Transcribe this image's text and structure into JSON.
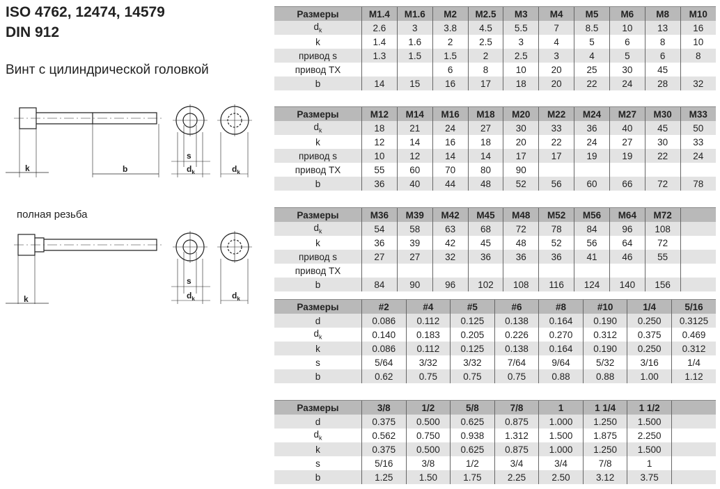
{
  "header": {
    "line1": "ISO 4762, 12474, 14579",
    "line2": "DIN 912",
    "subtitle": "Винт с цилиндрической головкой",
    "full_thread": "полная резьба"
  },
  "diagram_labels": {
    "k": "k",
    "b": "b",
    "s": "s",
    "d": "d",
    "k_sub": "k"
  },
  "tables": [
    {
      "cols": [
        "Размеры",
        "M1.4",
        "M1.6",
        "M2",
        "M2.5",
        "M3",
        "M4",
        "M5",
        "M6",
        "M8",
        "M10"
      ],
      "rows": [
        {
          "label": "d",
          "sub": "k",
          "values": [
            "2.6",
            "3",
            "3.8",
            "4.5",
            "5.5",
            "7",
            "8.5",
            "10",
            "13",
            "16"
          ]
        },
        {
          "label": "k",
          "values": [
            "1.4",
            "1.6",
            "2",
            "2.5",
            "3",
            "4",
            "5",
            "6",
            "8",
            "10"
          ]
        },
        {
          "label": "привод s",
          "values": [
            "1.3",
            "1.5",
            "1.5",
            "2",
            "2.5",
            "3",
            "4",
            "5",
            "6",
            "8"
          ]
        },
        {
          "label": "привод TX",
          "values": [
            "",
            "",
            "6",
            "8",
            "10",
            "20",
            "25",
            "30",
            "45",
            ""
          ]
        },
        {
          "label": "b",
          "values": [
            "14",
            "15",
            "16",
            "17",
            "18",
            "20",
            "22",
            "24",
            "28",
            "32"
          ]
        }
      ]
    },
    {
      "cols": [
        "Размеры",
        "M12",
        "M14",
        "M16",
        "M18",
        "M20",
        "M22",
        "M24",
        "M27",
        "M30",
        "M33"
      ],
      "rows": [
        {
          "label": "d",
          "sub": "k",
          "values": [
            "18",
            "21",
            "24",
            "27",
            "30",
            "33",
            "36",
            "40",
            "45",
            "50"
          ]
        },
        {
          "label": "k",
          "values": [
            "12",
            "14",
            "16",
            "18",
            "20",
            "22",
            "24",
            "27",
            "30",
            "33"
          ]
        },
        {
          "label": "привод s",
          "values": [
            "10",
            "12",
            "14",
            "14",
            "17",
            "17",
            "19",
            "19",
            "22",
            "24"
          ]
        },
        {
          "label": "привод TX",
          "values": [
            "55",
            "60",
            "70",
            "80",
            "90",
            "",
            "",
            "",
            "",
            ""
          ]
        },
        {
          "label": "b",
          "values": [
            "36",
            "40",
            "44",
            "48",
            "52",
            "56",
            "60",
            "66",
            "72",
            "78"
          ]
        }
      ]
    },
    {
      "cols": [
        "Размеры",
        "M36",
        "M39",
        "M42",
        "M45",
        "M48",
        "M52",
        "M56",
        "M64",
        "M72",
        ""
      ],
      "rows": [
        {
          "label": "d",
          "sub": "k",
          "values": [
            "54",
            "58",
            "63",
            "68",
            "72",
            "78",
            "84",
            "96",
            "108",
            ""
          ]
        },
        {
          "label": "k",
          "values": [
            "36",
            "39",
            "42",
            "45",
            "48",
            "52",
            "56",
            "64",
            "72",
            ""
          ]
        },
        {
          "label": "привод s",
          "values": [
            "27",
            "27",
            "32",
            "36",
            "36",
            "36",
            "41",
            "46",
            "55",
            ""
          ]
        },
        {
          "label": "привод TX",
          "values": [
            "",
            "",
            "",
            "",
            "",
            "",
            "",
            "",
            "",
            ""
          ]
        },
        {
          "label": "b",
          "values": [
            "84",
            "90",
            "96",
            "102",
            "108",
            "116",
            "124",
            "140",
            "156",
            ""
          ]
        }
      ]
    },
    {
      "cols": [
        "Размеры",
        "#2",
        "#4",
        "#5",
        "#6",
        "#8",
        "#10",
        "1/4",
        "5/16"
      ],
      "rows": [
        {
          "label": "d",
          "values": [
            "0.086",
            "0.112",
            "0.125",
            "0.138",
            "0.164",
            "0.190",
            "0.250",
            "0.3125"
          ]
        },
        {
          "label": "d",
          "sub": "k",
          "values": [
            "0.140",
            "0.183",
            "0.205",
            "0.226",
            "0.270",
            "0.312",
            "0.375",
            "0.469"
          ]
        },
        {
          "label": "k",
          "values": [
            "0.086",
            "0.112",
            "0.125",
            "0.138",
            "0.164",
            "0.190",
            "0.250",
            "0.312"
          ]
        },
        {
          "label": "s",
          "values": [
            "5/64",
            "3/32",
            "3/32",
            "7/64",
            "9/64",
            "5/32",
            "3/16",
            "1/4"
          ]
        },
        {
          "label": "b",
          "values": [
            "0.62",
            "0.75",
            "0.75",
            "0.75",
            "0.88",
            "0.88",
            "1.00",
            "1.12"
          ]
        }
      ]
    },
    {
      "cols": [
        "Размеры",
        "3/8",
        "1/2",
        "5/8",
        "7/8",
        "1",
        "1 1/4",
        "1 1/2",
        ""
      ],
      "rows": [
        {
          "label": "d",
          "values": [
            "0.375",
            "0.500",
            "0.625",
            "0.875",
            "1.000",
            "1.250",
            "1.500",
            ""
          ]
        },
        {
          "label": "d",
          "sub": "k",
          "values": [
            "0.562",
            "0.750",
            "0.938",
            "1.312",
            "1.500",
            "1.875",
            "2.250",
            ""
          ]
        },
        {
          "label": "k",
          "values": [
            "0.375",
            "0.500",
            "0.625",
            "0.875",
            "1.000",
            "1.250",
            "1.500",
            ""
          ]
        },
        {
          "label": "s",
          "values": [
            "5/16",
            "3/8",
            "1/2",
            "3/4",
            "3/4",
            "7/8",
            "1",
            ""
          ]
        },
        {
          "label": "b",
          "values": [
            "1.25",
            "1.50",
            "1.75",
            "2.25",
            "2.50",
            "3.12",
            "3.75",
            ""
          ]
        }
      ]
    }
  ]
}
